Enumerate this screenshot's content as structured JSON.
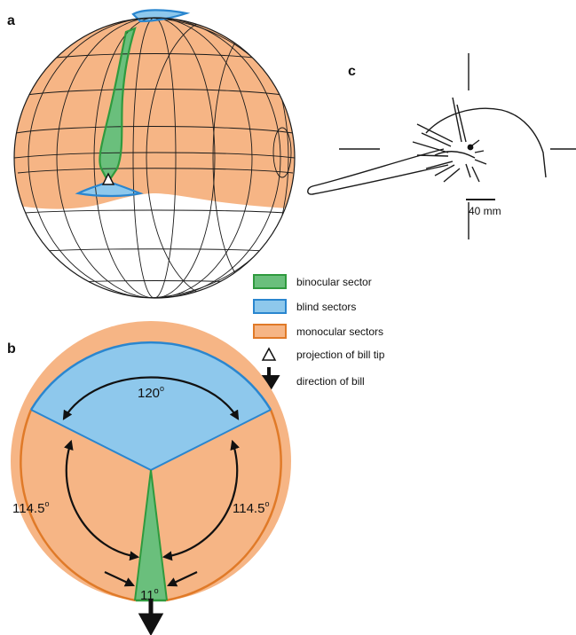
{
  "panels": {
    "a": "a",
    "b": "b",
    "c": "c"
  },
  "colors": {
    "binocular": "#6abf7c",
    "binocular_edge": "#2f9a3e",
    "blind": "#8ec8ec",
    "blind_edge": "#2a86cf",
    "monocular": "#f6b585",
    "monocular_edge": "#e07a28",
    "line": "#1a1a1a"
  },
  "legend": {
    "binocular": "binocular sector",
    "blind": "blind sectors",
    "monocular": "monocular sectors",
    "bill_tip": "projection of bill tip",
    "bill_dir": "direction of bill"
  },
  "angles": {
    "top": {
      "value": "120",
      "unit": "o"
    },
    "left": {
      "value": "114.5",
      "unit": "o"
    },
    "right": {
      "value": "114.5",
      "unit": "o"
    },
    "bottom": {
      "value": "11",
      "unit": "o"
    }
  },
  "scale_bar": "40 mm"
}
